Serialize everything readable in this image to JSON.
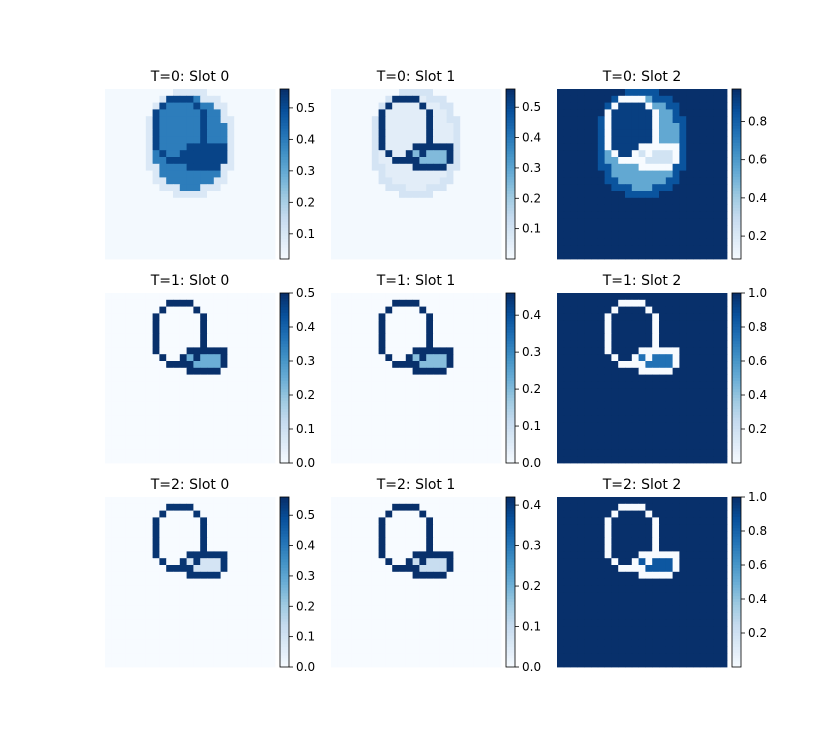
{
  "colors": {
    "cmap": "Blues",
    "cmap_low": "#f7fbff",
    "cmap_high": "#08306b",
    "background": "#ffffff"
  },
  "chart_data": {
    "type": "heatmap",
    "grid": "off",
    "panels": [
      {
        "title": "T=0: Slot 0",
        "colorbar": {
          "vmin": 0.02,
          "vmax": 0.56,
          "ticks": [
            0.1,
            0.2,
            0.3,
            0.4,
            0.5
          ],
          "tick_labels": [
            "0.1",
            "0.2",
            "0.3",
            "0.4",
            "0.5"
          ]
        },
        "field": {
          "base": 0.03,
          "blob": 0.4,
          "blob_edge": 0.1,
          "ring": 0.52,
          "interior": 0.4,
          "lower_interior": 0.52
        }
      },
      {
        "title": "T=0: Slot 1",
        "colorbar": {
          "vmin": 0.0,
          "vmax": 0.56,
          "ticks": [
            0.1,
            0.2,
            0.3,
            0.4,
            0.5
          ],
          "tick_labels": [
            "0.1",
            "0.2",
            "0.3",
            "0.4",
            "0.5"
          ]
        },
        "field": {
          "base": 0.01,
          "blob": 0.06,
          "blob_edge": 0.1,
          "ring": 0.55,
          "interior": 0.06,
          "lower_interior": 0.25
        }
      },
      {
        "title": "T=0: Slot 2",
        "colorbar": {
          "vmin": 0.08,
          "vmax": 0.97,
          "ticks": [
            0.2,
            0.4,
            0.6,
            0.8
          ],
          "tick_labels": [
            "0.2",
            "0.4",
            "0.6",
            "0.8"
          ]
        },
        "field": {
          "base": 0.97,
          "blob": 0.55,
          "blob_edge": 0.85,
          "ring": 0.08,
          "interior": 0.45,
          "lower_interior": 0.25,
          "upper_interior": 0.92
        }
      },
      {
        "title": "T=1: Slot 0",
        "colorbar": {
          "vmin": 0.0,
          "vmax": 0.5,
          "ticks": [
            0.0,
            0.1,
            0.2,
            0.3,
            0.4,
            0.5
          ],
          "tick_labels": [
            "0.0",
            "0.1",
            "0.2",
            "0.3",
            "0.4",
            "0.5"
          ]
        },
        "field": {
          "base": 0.0,
          "ring": 0.5,
          "interior": 0.0,
          "lower_interior": 0.25
        }
      },
      {
        "title": "T=1: Slot 1",
        "colorbar": {
          "vmin": 0.0,
          "vmax": 0.46,
          "ticks": [
            0.0,
            0.1,
            0.2,
            0.3,
            0.4
          ],
          "tick_labels": [
            "0.0",
            "0.1",
            "0.2",
            "0.3",
            "0.4"
          ]
        },
        "field": {
          "base": 0.0,
          "ring": 0.46,
          "interior": 0.0,
          "lower_interior": 0.2
        }
      },
      {
        "title": "T=1: Slot 2",
        "colorbar": {
          "vmin": 0.0,
          "vmax": 1.0,
          "ticks": [
            0.2,
            0.4,
            0.6,
            0.8,
            1.0
          ],
          "tick_labels": [
            "0.2",
            "0.4",
            "0.6",
            "0.8",
            "1.0"
          ]
        },
        "field": {
          "base": 1.0,
          "ring": 0.0,
          "interior": 1.0,
          "lower_interior": 0.75
        }
      },
      {
        "title": "T=2: Slot 0",
        "colorbar": {
          "vmin": 0.0,
          "vmax": 0.56,
          "ticks": [
            0.0,
            0.1,
            0.2,
            0.3,
            0.4,
            0.5
          ],
          "tick_labels": [
            "0.0",
            "0.1",
            "0.2",
            "0.3",
            "0.4",
            "0.5"
          ]
        },
        "field": {
          "base": 0.0,
          "ring": 0.55,
          "interior": 0.0,
          "lower_interior": 0.1
        }
      },
      {
        "title": "T=2: Slot 1",
        "colorbar": {
          "vmin": 0.0,
          "vmax": 0.42,
          "ticks": [
            0.0,
            0.1,
            0.2,
            0.3,
            0.4
          ],
          "tick_labels": [
            "0.0",
            "0.1",
            "0.2",
            "0.3",
            "0.4"
          ]
        },
        "field": {
          "base": 0.0,
          "ring": 0.42,
          "interior": 0.0,
          "lower_interior": 0.1
        }
      },
      {
        "title": "T=2: Slot 2",
        "colorbar": {
          "vmin": 0.0,
          "vmax": 1.0,
          "ticks": [
            0.2,
            0.4,
            0.6,
            0.8,
            1.0
          ],
          "tick_labels": [
            "0.2",
            "0.4",
            "0.6",
            "0.8",
            "1.0"
          ]
        },
        "field": {
          "base": 1.0,
          "ring": 0.0,
          "interior": 1.0,
          "lower_interior": 0.85
        }
      }
    ]
  }
}
